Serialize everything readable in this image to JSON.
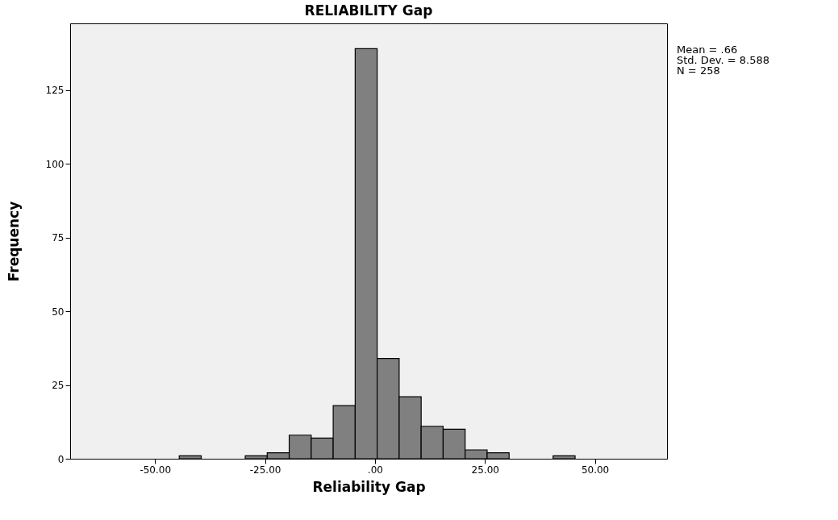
{
  "chart_data": {
    "type": "histogram",
    "title": "RELIABILITY Gap",
    "xlabel": "Reliability Gap",
    "ylabel": "Frequency",
    "bins": [
      -44.5,
      -39.5,
      -34.5,
      -29.5,
      -24.5,
      -19.5,
      -14.5,
      -9.5,
      -4.5,
      0.5,
      5.5,
      10.5,
      15.5,
      20.5,
      25.5,
      30.5,
      35.5,
      40.5,
      45.5
    ],
    "values": [
      1,
      0,
      0,
      1,
      2,
      8,
      7,
      18,
      139,
      34,
      21,
      11,
      10,
      3,
      2,
      0,
      0,
      1
    ],
    "color": "#808080",
    "xlim": [
      -69.3,
      66.4
    ],
    "xticks": [
      {
        "value": -50,
        "label": "-50.00"
      },
      {
        "value": -25,
        "label": "-25.00"
      },
      {
        "value": 0,
        "label": ".00"
      },
      {
        "value": 25,
        "label": "25.00"
      },
      {
        "value": 50,
        "label": "50.00"
      }
    ],
    "ylim": [
      0,
      147.6
    ],
    "yticks": [
      0,
      25,
      50,
      75,
      100,
      125
    ],
    "annotations": [
      "Mean = .66",
      "Std. Dev. = 8.588",
      "N = 258"
    ]
  }
}
